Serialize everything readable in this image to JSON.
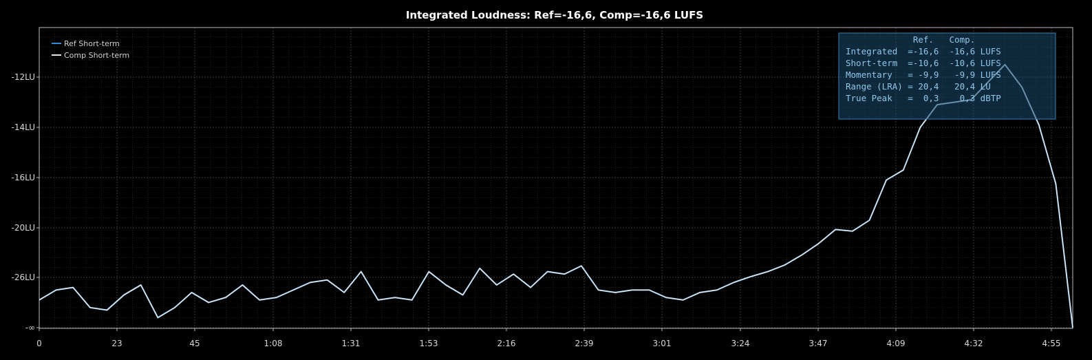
{
  "chart_data": {
    "type": "line",
    "title": "Integrated Loudness: Ref=-16,6, Comp=-16,6 LUFS",
    "xlabel": "",
    "ylabel": "",
    "y_ticks": [
      "-12LU",
      "-14LU",
      "-16LU",
      "-20LU",
      "-26LU",
      "-∞"
    ],
    "x_ticks": [
      "0",
      "23",
      "45",
      "1:08",
      "1:31",
      "1:53",
      "2:16",
      "2:39",
      "3:01",
      "3:24",
      "3:47",
      "4:09",
      "4:32",
      "4:55"
    ],
    "grid": true,
    "legend_position": "top-left",
    "x": [
      0,
      5,
      10,
      15,
      20,
      25,
      30,
      35,
      40,
      45,
      50,
      55,
      60,
      65,
      70,
      75,
      80,
      85,
      90,
      95,
      100,
      105,
      110,
      115,
      120,
      125,
      130,
      135,
      140,
      145,
      150,
      155,
      160,
      165,
      170,
      175,
      180,
      185,
      190,
      195,
      200,
      205,
      210,
      215,
      220,
      225,
      230,
      235,
      240,
      245,
      250,
      255,
      260,
      265,
      270,
      275,
      280,
      285,
      290,
      295,
      300,
      305
    ],
    "series": [
      {
        "name": "Ref Short-term",
        "color": "#2e8fd8",
        "values": [
          -26.9,
          -26.5,
          -26.4,
          -27.2,
          -27.3,
          -26.7,
          -26.3,
          -27.6,
          -27.2,
          -26.6,
          -27.0,
          -26.8,
          -26.3,
          -26.9,
          -26.8,
          -26.5,
          -26.2,
          -26.1,
          -26.6,
          -25.3,
          -26.9,
          -26.8,
          -26.9,
          -25.3,
          -26.3,
          -26.7,
          -24.9,
          -26.3,
          -25.6,
          -26.4,
          -25.3,
          -25.6,
          -24.6,
          -26.5,
          -26.6,
          -26.5,
          -26.5,
          -26.8,
          -26.9,
          -26.6,
          -26.5,
          -26.2,
          -25.9,
          -25.3,
          -24.5,
          -23.3,
          -21.9,
          -20.2,
          -20.4,
          -19.4,
          -16.2,
          -15.7,
          -14.0,
          -13.1,
          -13.0,
          -12.9,
          -12.2,
          -11.5,
          -12.4,
          -13.9,
          -16.5,
          -28.0
        ]
      },
      {
        "name": "Comp Short-term",
        "color": "#e6e6e6",
        "values": [
          -26.9,
          -26.5,
          -26.4,
          -27.2,
          -27.3,
          -26.7,
          -26.3,
          -27.6,
          -27.2,
          -26.6,
          -27.0,
          -26.8,
          -26.3,
          -26.9,
          -26.8,
          -26.5,
          -26.2,
          -26.1,
          -26.6,
          -25.3,
          -26.9,
          -26.8,
          -26.9,
          -25.3,
          -26.3,
          -26.7,
          -24.9,
          -26.3,
          -25.6,
          -26.4,
          -25.3,
          -25.6,
          -24.6,
          -26.5,
          -26.6,
          -26.5,
          -26.5,
          -26.8,
          -26.9,
          -26.6,
          -26.5,
          -26.2,
          -25.9,
          -25.3,
          -24.5,
          -23.3,
          -21.9,
          -20.2,
          -20.4,
          -19.4,
          -16.2,
          -15.7,
          -14.0,
          -13.1,
          -13.0,
          -12.9,
          -12.2,
          -11.5,
          -12.4,
          -13.9,
          -16.5,
          -28.0
        ]
      }
    ]
  },
  "legend": {
    "ref_label": "Ref Short-term",
    "comp_label": "Comp Short-term",
    "ref_color": "#2e8fd8",
    "comp_color": "#e6e6e6"
  },
  "stats": {
    "lines": [
      "             Ref.   Comp.",
      "Integrated  =-16,6  -16,6 LUFS",
      "Short-term  =-10,6  -10,6 LUFS",
      "Momentary   = -9,9   -9,9 LUFS",
      "Range (LRA) = 20,4   20,4 LU",
      "True Peak   =  0,3    0,3 dBTP"
    ]
  }
}
